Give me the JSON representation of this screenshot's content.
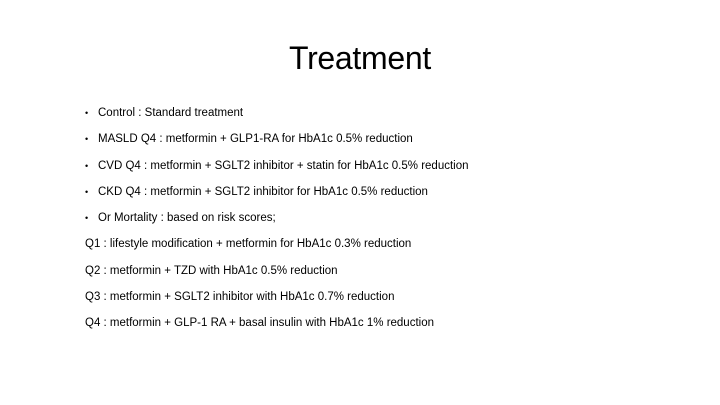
{
  "slide": {
    "title": "Treatment",
    "bullets": [
      "Control : Standard treatment",
      "MASLD Q4 : metformin + GLP1-RA for HbA1c 0.5% reduction",
      "CVD Q4 : metformin + SGLT2 inhibitor + statin for HbA1c 0.5% reduction",
      "CKD Q4 : metformin + SGLT2 inhibitor for HbA1c 0.5% reduction",
      "Or Mortality : based on risk scores;"
    ],
    "bullet_glyph": "•",
    "quartiles": [
      "Q1 : lifestyle modification + metformin for HbA1c 0.3% reduction",
      "Q2 : metformin + TZD with HbA1c 0.5% reduction",
      "Q3 : metformin + SGLT2 inhibitor with HbA1c 0.7% reduction",
      "Q4 : metformin + GLP-1 RA + basal insulin with HbA1c 1% reduction"
    ]
  }
}
